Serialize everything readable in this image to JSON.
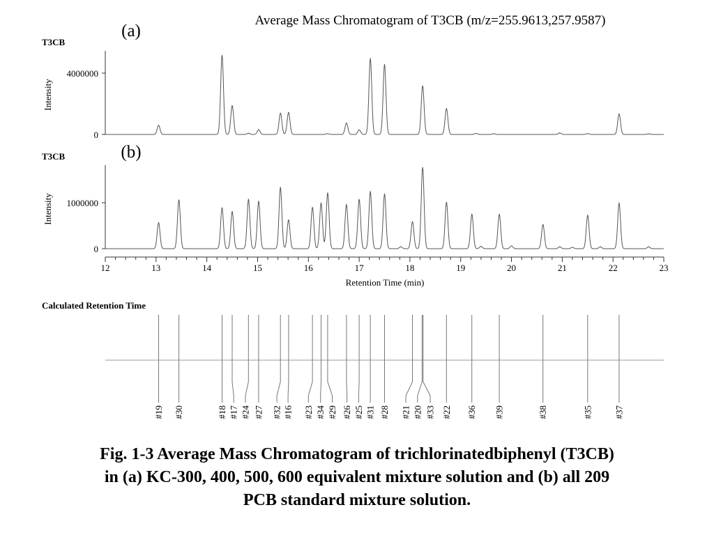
{
  "chart_data": [
    {
      "type": "line",
      "id": "a",
      "title": "Average Mass Chromatogram of T3CB (m/z=255.9613,257.9587)",
      "panel_label": "(a)",
      "series_label": "T3CB",
      "ylabel": "Intensity",
      "xlim": [
        12,
        23
      ],
      "ylim": [
        0,
        5500000
      ],
      "yticks": [
        0,
        4000000
      ],
      "ytick_labels": [
        "0",
        "4000000"
      ],
      "peaks": [
        {
          "x": 13.05,
          "y": 600000
        },
        {
          "x": 14.3,
          "y": 5200000
        },
        {
          "x": 14.5,
          "y": 1900000
        },
        {
          "x": 14.82,
          "y": 80000
        },
        {
          "x": 15.02,
          "y": 320000
        },
        {
          "x": 15.45,
          "y": 1400000
        },
        {
          "x": 15.61,
          "y": 1450000
        },
        {
          "x": 16.38,
          "y": 50000
        },
        {
          "x": 16.75,
          "y": 750000
        },
        {
          "x": 17.0,
          "y": 300000
        },
        {
          "x": 17.22,
          "y": 5000000
        },
        {
          "x": 17.5,
          "y": 4600000
        },
        {
          "x": 18.25,
          "y": 3200000
        },
        {
          "x": 18.72,
          "y": 1700000
        },
        {
          "x": 19.3,
          "y": 70000
        },
        {
          "x": 19.65,
          "y": 50000
        },
        {
          "x": 20.95,
          "y": 100000
        },
        {
          "x": 21.5,
          "y": 60000
        },
        {
          "x": 22.12,
          "y": 1350000
        },
        {
          "x": 22.7,
          "y": 40000
        }
      ]
    },
    {
      "type": "line",
      "id": "b",
      "panel_label": "(b)",
      "series_label": "T3CB",
      "ylabel": "Intensity",
      "xlabel": "Retention Time (min)",
      "xlim": [
        12,
        23
      ],
      "ylim": [
        0,
        1800000
      ],
      "yticks": [
        0,
        1000000
      ],
      "ytick_labels": [
        "0",
        "1000000"
      ],
      "xticks": [
        12,
        13,
        14,
        15,
        16,
        17,
        18,
        19,
        20,
        21,
        22,
        23
      ],
      "xtick_labels": [
        "12",
        "13",
        "14",
        "15",
        "16",
        "17",
        "18",
        "19",
        "20",
        "21",
        "22",
        "23"
      ],
      "peaks": [
        {
          "x": 13.05,
          "y": 560000
        },
        {
          "x": 13.45,
          "y": 1050000
        },
        {
          "x": 14.3,
          "y": 880000
        },
        {
          "x": 14.5,
          "y": 800000
        },
        {
          "x": 14.82,
          "y": 1060000
        },
        {
          "x": 15.02,
          "y": 1020000
        },
        {
          "x": 15.45,
          "y": 1320000
        },
        {
          "x": 15.61,
          "y": 620000
        },
        {
          "x": 16.08,
          "y": 890000
        },
        {
          "x": 16.25,
          "y": 980000
        },
        {
          "x": 16.38,
          "y": 1200000
        },
        {
          "x": 16.75,
          "y": 950000
        },
        {
          "x": 17.0,
          "y": 1060000
        },
        {
          "x": 17.22,
          "y": 1230000
        },
        {
          "x": 17.5,
          "y": 1180000
        },
        {
          "x": 17.82,
          "y": 40000
        },
        {
          "x": 18.05,
          "y": 580000
        },
        {
          "x": 18.25,
          "y": 1750000
        },
        {
          "x": 18.72,
          "y": 1000000
        },
        {
          "x": 19.22,
          "y": 740000
        },
        {
          "x": 19.4,
          "y": 50000
        },
        {
          "x": 19.76,
          "y": 740000
        },
        {
          "x": 20.0,
          "y": 60000
        },
        {
          "x": 20.62,
          "y": 520000
        },
        {
          "x": 20.95,
          "y": 40000
        },
        {
          "x": 21.2,
          "y": 30000
        },
        {
          "x": 21.5,
          "y": 720000
        },
        {
          "x": 21.75,
          "y": 40000
        },
        {
          "x": 22.12,
          "y": 980000
        },
        {
          "x": 22.7,
          "y": 40000
        }
      ]
    }
  ],
  "calculated_retention": {
    "label": "Calculated Retention Time",
    "xlim": [
      12,
      23
    ],
    "items": [
      {
        "id": "#19",
        "rt": 13.05,
        "label_x": 13.05
      },
      {
        "id": "#30",
        "rt": 13.45,
        "label_x": 13.45
      },
      {
        "id": "#18",
        "rt": 14.3,
        "label_x": 14.3
      },
      {
        "id": "#17",
        "rt": 14.5,
        "label_x": 14.53
      },
      {
        "id": "#24",
        "rt": 14.82,
        "label_x": 14.76
      },
      {
        "id": "#27",
        "rt": 15.02,
        "label_x": 15.02
      },
      {
        "id": "#32",
        "rt": 15.45,
        "label_x": 15.38
      },
      {
        "id": "#16",
        "rt": 15.61,
        "label_x": 15.6
      },
      {
        "id": "#23",
        "rt": 16.08,
        "label_x": 16.0
      },
      {
        "id": "#34",
        "rt": 16.25,
        "label_x": 16.24
      },
      {
        "id": "#29",
        "rt": 16.38,
        "label_x": 16.47
      },
      {
        "id": "#26",
        "rt": 16.75,
        "label_x": 16.76
      },
      {
        "id": "#25",
        "rt": 17.0,
        "label_x": 16.99
      },
      {
        "id": "#31",
        "rt": 17.22,
        "label_x": 17.22
      },
      {
        "id": "#28",
        "rt": 17.5,
        "label_x": 17.5
      },
      {
        "id": "#21",
        "rt": 18.05,
        "label_x": 17.92
      },
      {
        "id": "#20",
        "rt": 18.24,
        "label_x": 18.15
      },
      {
        "id": "#33",
        "rt": 18.26,
        "label_x": 18.4
      },
      {
        "id": "#22",
        "rt": 18.72,
        "label_x": 18.72
      },
      {
        "id": "#36",
        "rt": 19.22,
        "label_x": 19.22
      },
      {
        "id": "#39",
        "rt": 19.76,
        "label_x": 19.76
      },
      {
        "id": "#38",
        "rt": 20.62,
        "label_x": 20.62
      },
      {
        "id": "#35",
        "rt": 21.5,
        "label_x": 21.5
      },
      {
        "id": "#37",
        "rt": 22.12,
        "label_x": 22.12
      }
    ]
  },
  "caption": {
    "line1": "Fig. 1-3  Average Mass Chromatogram of trichlorinatedbiphenyl (T3CB)",
    "line2": "in (a) KC-300, 400, 500, 600 equivalent mixture solution and (b) all 209",
    "line3": "PCB standard mixture solution."
  }
}
